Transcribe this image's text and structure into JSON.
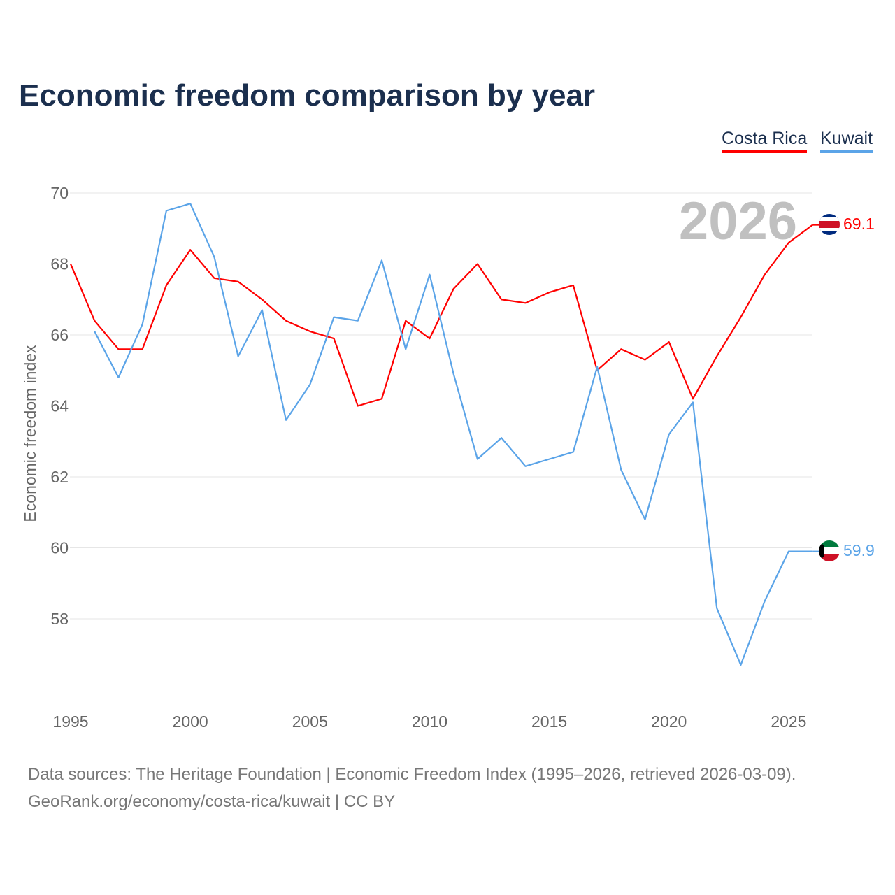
{
  "chart_data": {
    "type": "line",
    "title": "Economic freedom comparison by year",
    "xlabel": "",
    "ylabel": "Economic freedom index",
    "xlim": [
      1995,
      2026
    ],
    "ylim": [
      55.7,
      70.5
    ],
    "grid": true,
    "legend_placement": "top-right",
    "annotation": "2026",
    "xticks": [
      "1995",
      "2000",
      "2005",
      "2010",
      "2015",
      "2020",
      "2025"
    ],
    "yticks": [
      "58",
      "60",
      "62",
      "64",
      "66",
      "68",
      "70"
    ],
    "series": [
      {
        "name": "Costa Rica",
        "color": "#ff0000",
        "end_label": "69.1",
        "x": [
          1995,
          1996,
          1997,
          1998,
          1999,
          2000,
          2001,
          2002,
          2003,
          2004,
          2005,
          2006,
          2007,
          2008,
          2009,
          2010,
          2011,
          2012,
          2013,
          2014,
          2015,
          2016,
          2017,
          2018,
          2019,
          2020,
          2021,
          2022,
          2023,
          2024,
          2025,
          2026
        ],
        "values": [
          68.0,
          66.4,
          65.6,
          65.6,
          67.4,
          68.4,
          67.6,
          67.5,
          67.0,
          66.4,
          66.1,
          65.9,
          64.0,
          64.2,
          66.4,
          65.9,
          67.3,
          68.0,
          67.0,
          66.9,
          67.2,
          67.4,
          65.0,
          65.6,
          65.3,
          65.8,
          64.2,
          65.4,
          66.5,
          67.7,
          68.6,
          69.1
        ]
      },
      {
        "name": "Kuwait",
        "color": "#5ba4e8",
        "end_label": "59.9",
        "x": [
          1996,
          1997,
          1998,
          1999,
          2000,
          2001,
          2002,
          2003,
          2004,
          2005,
          2006,
          2007,
          2008,
          2009,
          2010,
          2011,
          2012,
          2013,
          2014,
          2015,
          2016,
          2017,
          2018,
          2019,
          2020,
          2021,
          2022,
          2023,
          2024,
          2025,
          2026
        ],
        "values": [
          66.1,
          64.8,
          66.3,
          69.5,
          69.7,
          68.2,
          65.4,
          66.7,
          63.6,
          64.6,
          66.5,
          66.4,
          68.1,
          65.6,
          67.7,
          64.9,
          62.5,
          63.1,
          62.3,
          62.5,
          62.7,
          65.1,
          62.2,
          60.8,
          63.2,
          64.1,
          58.3,
          56.7,
          58.5,
          59.9,
          59.9
        ]
      }
    ]
  },
  "legend": [
    "Costa Rica",
    "Kuwait"
  ],
  "source": {
    "line1": "Data sources: The Heritage Foundation | Economic Freedom Index (1995–2026, retrieved 2026-03-09).",
    "line2": "GeoRank.org/economy/costa-rica/kuwait | CC BY"
  }
}
